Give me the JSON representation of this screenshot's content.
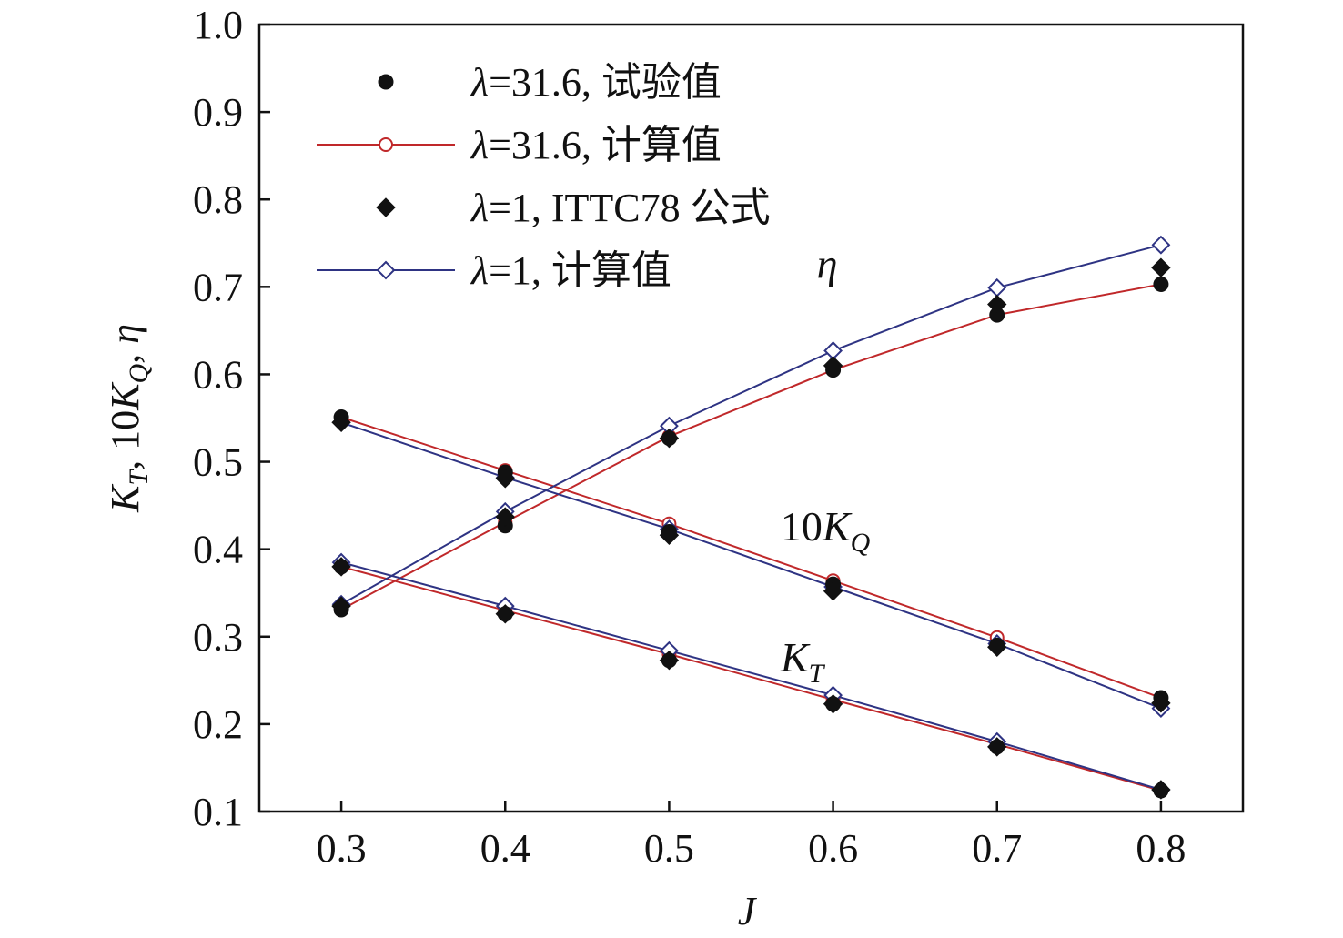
{
  "chart_data": {
    "type": "line",
    "xlabel": "J",
    "ylabel": {
      "parts": [
        "K",
        "T",
        ", 10",
        "K",
        "Q",
        ", ",
        "η"
      ]
    },
    "xlim": [
      0.25,
      0.85
    ],
    "ylim": [
      0.1,
      1.0
    ],
    "x_ticks": [
      "0.3",
      "0.4",
      "0.5",
      "0.6",
      "0.7",
      "0.8"
    ],
    "y_ticks": [
      "0.1",
      "0.2",
      "0.3",
      "0.4",
      "0.5",
      "0.6",
      "0.7",
      "0.8",
      "0.9",
      "1.0"
    ],
    "x": [
      0.3,
      0.4,
      0.5,
      0.6,
      0.7,
      0.8
    ],
    "legend_position": "top-left",
    "legend": [
      {
        "lambda": "λ",
        "text": "=31.6, 试验值",
        "series": "exp316"
      },
      {
        "lambda": "λ",
        "text": "=31.6, 计算值",
        "series": "calc316"
      },
      {
        "lambda": "λ",
        "text": "=1, ITTC78 公式",
        "series": "ittc"
      },
      {
        "lambda": "λ",
        "text": "=1, 计算值",
        "series": "calc1"
      }
    ],
    "series": [
      {
        "id": "exp316",
        "marker": "filled-circle",
        "color": "#111111",
        "line": false,
        "KT": [
          0.38,
          0.326,
          0.273,
          0.223,
          0.174,
          0.124
        ],
        "10KQ": [
          0.551,
          0.488,
          0.42,
          0.36,
          0.29,
          0.23
        ],
        "eta": [
          0.331,
          0.427,
          0.527,
          0.605,
          0.668,
          0.703
        ]
      },
      {
        "id": "calc316",
        "marker": "open-circle",
        "color": "#c0282a",
        "line": true,
        "KT": [
          0.38,
          0.33,
          0.28,
          0.228,
          0.177,
          0.124
        ],
        "10KQ": [
          0.551,
          0.49,
          0.429,
          0.364,
          0.299,
          0.23
        ],
        "eta": [
          0.331,
          0.431,
          0.529,
          0.605,
          0.668,
          0.703
        ]
      },
      {
        "id": "ittc",
        "marker": "filled-diamond",
        "color": "#111111",
        "line": false,
        "KT": [
          0.38,
          0.326,
          0.273,
          0.223,
          0.174,
          0.125
        ],
        "10KQ": [
          0.545,
          0.481,
          0.416,
          0.352,
          0.288,
          0.224
        ],
        "eta": [
          0.335,
          0.437,
          0.527,
          0.61,
          0.68,
          0.722
        ]
      },
      {
        "id": "calc1",
        "marker": "open-diamond",
        "color": "#2e3383",
        "line": true,
        "KT": [
          0.385,
          0.335,
          0.284,
          0.233,
          0.18,
          0.125
        ],
        "10KQ": [
          0.545,
          0.482,
          0.423,
          0.357,
          0.292,
          0.218
        ],
        "eta": [
          0.337,
          0.443,
          0.541,
          0.627,
          0.699,
          0.748
        ]
      }
    ],
    "annotations": [
      {
        "parts": [
          "η"
        ],
        "x": 0.59,
        "y": 0.71
      },
      {
        "parts": [
          "10",
          "K",
          "Q"
        ],
        "x": 0.568,
        "y": 0.41
      },
      {
        "parts": [
          "K",
          "T"
        ],
        "x": 0.568,
        "y": 0.26
      }
    ]
  }
}
